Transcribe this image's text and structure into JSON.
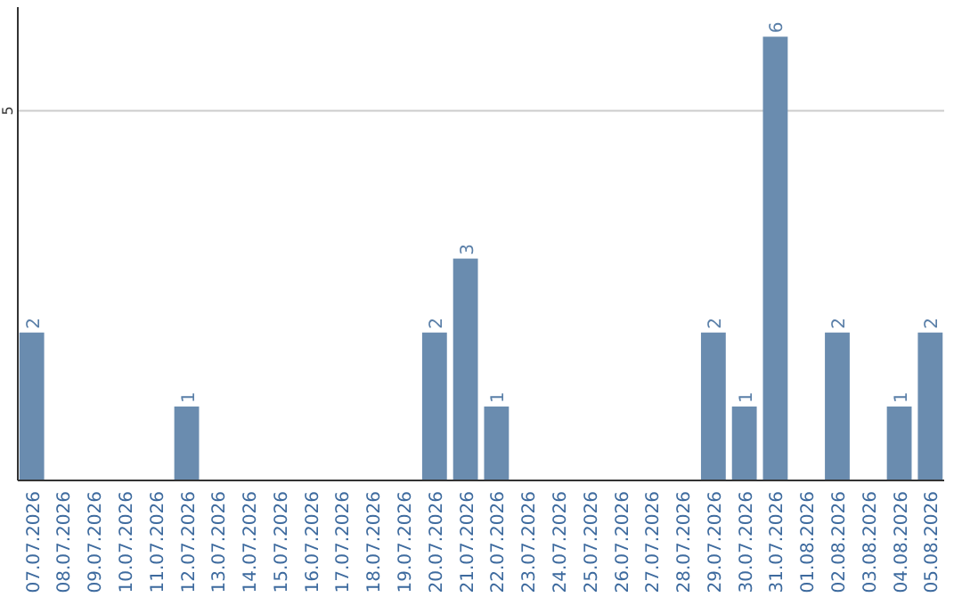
{
  "chart_data": {
    "type": "bar",
    "categories": [
      "07.07.2026",
      "08.07.2026",
      "09.07.2026",
      "10.07.2026",
      "11.07.2026",
      "12.07.2026",
      "13.07.2026",
      "14.07.2026",
      "15.07.2026",
      "16.07.2026",
      "17.07.2026",
      "18.07.2026",
      "19.07.2026",
      "20.07.2026",
      "21.07.2026",
      "22.07.2026",
      "23.07.2026",
      "24.07.2026",
      "25.07.2026",
      "26.07.2026",
      "27.07.2026",
      "28.07.2026",
      "29.07.2026",
      "30.07.2026",
      "31.07.2026",
      "01.08.2026",
      "02.08.2026",
      "03.08.2026",
      "04.08.2026",
      "05.08.2026"
    ],
    "values": [
      2,
      0,
      0,
      0,
      0,
      1,
      0,
      0,
      0,
      0,
      0,
      0,
      0,
      2,
      3,
      1,
      0,
      0,
      0,
      0,
      0,
      0,
      2,
      1,
      6,
      0,
      2,
      0,
      1,
      2
    ],
    "value_labels": [
      "2",
      null,
      null,
      null,
      null,
      "1",
      null,
      null,
      null,
      null,
      null,
      null,
      null,
      "2",
      "3",
      "1",
      null,
      null,
      null,
      null,
      null,
      null,
      "2",
      "1",
      "6",
      null,
      "2",
      null,
      "1",
      "2"
    ],
    "color": "#6a8caf",
    "ylim": [
      0,
      6.4
    ],
    "yticks": [
      5
    ],
    "grid": "y"
  }
}
